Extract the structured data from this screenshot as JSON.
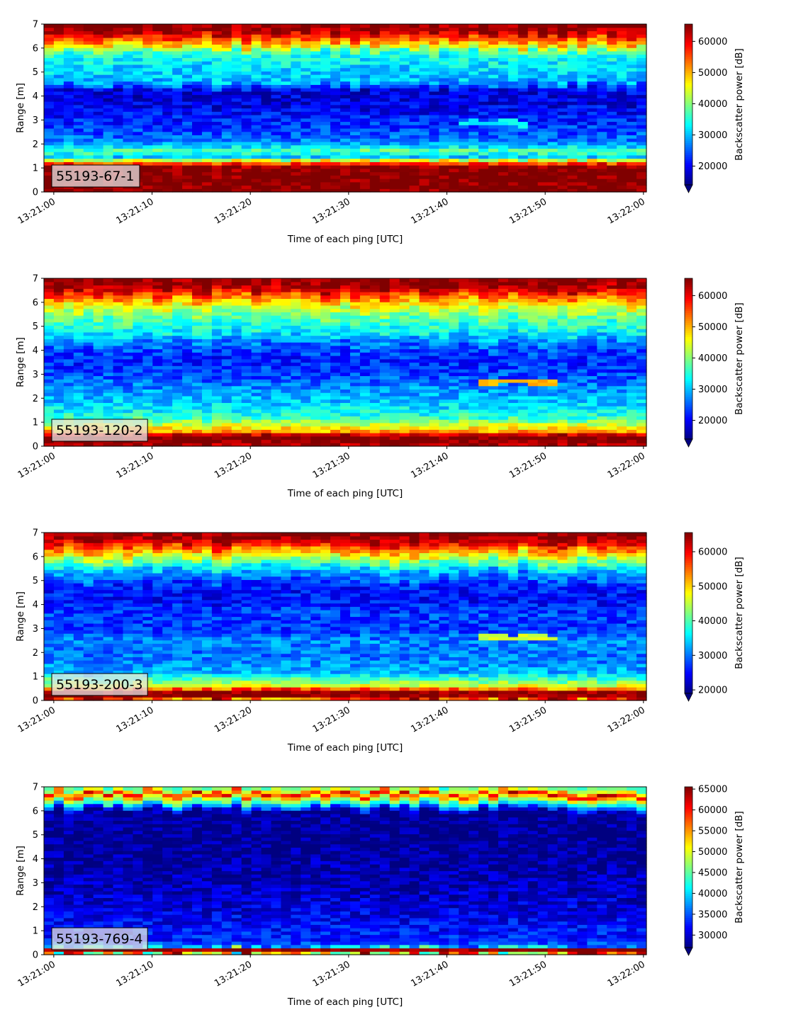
{
  "chart_data": [
    {
      "type": "heatmap",
      "label": "55193-67-1",
      "xlabel": "Time of each ping [UTC]",
      "ylabel": "Range [m]",
      "x_ticks": [
        "13:21:00",
        "13:21:10",
        "13:21:20",
        "13:21:30",
        "13:21:40",
        "13:21:50",
        "13:22:00"
      ],
      "x_range": [
        "13:20:59",
        "13:22:00.3"
      ],
      "ylim": [
        0,
        7
      ],
      "y_ticks": [
        "0",
        "1",
        "2",
        "3",
        "4",
        "5",
        "6",
        "7"
      ],
      "colorbar": {
        "label": "Backscatter power [dB]",
        "min": 14000,
        "max": 65535,
        "ticks": [
          "20000",
          "30000",
          "40000",
          "50000",
          "60000"
        ],
        "tick_values": [
          20000,
          30000,
          40000,
          50000,
          60000
        ],
        "extend": "min",
        "cmap": "jet"
      },
      "profile": [
        [
          0,
          65535
        ],
        [
          0.15,
          65535
        ],
        [
          1.05,
          65535
        ],
        [
          1.25,
          52000
        ],
        [
          1.45,
          30000
        ],
        [
          1.7,
          38000
        ],
        [
          1.9,
          32000
        ],
        [
          2.1,
          27000
        ],
        [
          2.5,
          24000
        ],
        [
          3.0,
          22000
        ],
        [
          3.6,
          19000
        ],
        [
          4.2,
          18500
        ],
        [
          4.6,
          30000
        ],
        [
          5.3,
          32000
        ],
        [
          5.8,
          36000
        ],
        [
          6.1,
          48000
        ],
        [
          6.45,
          57000
        ],
        [
          6.7,
          64000
        ],
        [
          7,
          65535
        ]
      ],
      "features": [
        {
          "t0": 41,
          "t1": 48,
          "y0": 2.75,
          "y1": 3.0,
          "value": 33000
        }
      ]
    },
    {
      "type": "heatmap",
      "label": "55193-120-2",
      "xlabel": "Time of each ping [UTC]",
      "ylabel": "Range [m]",
      "x_ticks": [
        "13:21:00",
        "13:21:10",
        "13:21:20",
        "13:21:30",
        "13:21:40",
        "13:21:50",
        "13:22:00"
      ],
      "x_range": [
        "13:20:59",
        "13:22:00.3"
      ],
      "ylim": [
        0,
        7
      ],
      "y_ticks": [
        "0",
        "1",
        "2",
        "3",
        "4",
        "5",
        "6",
        "7"
      ],
      "colorbar": {
        "label": "Backscatter power [dB]",
        "min": 14000,
        "max": 65535,
        "ticks": [
          "20000",
          "30000",
          "40000",
          "50000",
          "60000"
        ],
        "tick_values": [
          20000,
          30000,
          40000,
          50000,
          60000
        ],
        "extend": "min",
        "cmap": "jet"
      },
      "profile": [
        [
          0,
          62000
        ],
        [
          0.15,
          65535
        ],
        [
          0.45,
          65535
        ],
        [
          0.6,
          52000
        ],
        [
          0.9,
          44000
        ],
        [
          1.2,
          36000
        ],
        [
          1.5,
          33000
        ],
        [
          2.0,
          30000
        ],
        [
          2.5,
          27000
        ],
        [
          3.0,
          24000
        ],
        [
          3.6,
          22000
        ],
        [
          4.2,
          25000
        ],
        [
          4.8,
          33000
        ],
        [
          5.4,
          38000
        ],
        [
          5.9,
          46000
        ],
        [
          6.3,
          55000
        ],
        [
          6.6,
          63000
        ],
        [
          7,
          65535
        ]
      ],
      "features": [
        {
          "t0": 43,
          "t1": 51,
          "y0": 2.6,
          "y1": 2.8,
          "value": 50000
        }
      ]
    },
    {
      "type": "heatmap",
      "label": "55193-200-3",
      "xlabel": "Time of each ping [UTC]",
      "ylabel": "Range [m]",
      "x_ticks": [
        "13:21:00",
        "13:21:10",
        "13:21:20",
        "13:21:30",
        "13:21:40",
        "13:21:50",
        "13:22:00"
      ],
      "x_range": [
        "13:20:59",
        "13:22:00.3"
      ],
      "ylim": [
        0,
        7
      ],
      "y_ticks": [
        "0",
        "1",
        "2",
        "3",
        "4",
        "5",
        "6",
        "7"
      ],
      "colorbar": {
        "label": "Backscatter power [dB]",
        "min": 19000,
        "max": 65535,
        "ticks": [
          "20000",
          "30000",
          "40000",
          "50000",
          "60000"
        ],
        "tick_values": [
          20000,
          30000,
          40000,
          50000,
          60000
        ],
        "extend": "min",
        "cmap": "jet"
      },
      "profile": [
        [
          0,
          40000
        ],
        [
          0.1,
          65535
        ],
        [
          0.4,
          65535
        ],
        [
          0.55,
          48000
        ],
        [
          0.9,
          40000
        ],
        [
          1.2,
          33000
        ],
        [
          1.6,
          31000
        ],
        [
          2.0,
          30000
        ],
        [
          2.5,
          31000
        ],
        [
          3.0,
          27000
        ],
        [
          3.6,
          28000
        ],
        [
          4.2,
          25000
        ],
        [
          4.8,
          26000
        ],
        [
          5.4,
          33000
        ],
        [
          5.9,
          44000
        ],
        [
          6.3,
          54000
        ],
        [
          6.6,
          62000
        ],
        [
          7,
          65535
        ]
      ],
      "features": [
        {
          "t0": 43,
          "t1": 51,
          "y0": 2.55,
          "y1": 2.75,
          "value": 46000
        }
      ]
    },
    {
      "type": "heatmap",
      "label": "55193-769-4",
      "xlabel": "Time of each ping [UTC]",
      "ylabel": "Range [m]",
      "x_ticks": [
        "13:21:00",
        "13:21:10",
        "13:21:20",
        "13:21:30",
        "13:21:40",
        "13:21:50",
        "13:22:00"
      ],
      "x_range": [
        "13:20:59",
        "13:22:00.3"
      ],
      "ylim": [
        0,
        7
      ],
      "y_ticks": [
        "0",
        "1",
        "2",
        "3",
        "4",
        "5",
        "6",
        "7"
      ],
      "colorbar": {
        "label": "Backscatter power [dB]",
        "min": 27000,
        "max": 65535,
        "ticks": [
          "30000",
          "35000",
          "40000",
          "45000",
          "50000",
          "55000",
          "60000",
          "65000"
        ],
        "tick_values": [
          30000,
          35000,
          40000,
          45000,
          50000,
          55000,
          60000,
          65000
        ],
        "extend": "min",
        "cmap": "jet"
      },
      "profile": [
        [
          0,
          27000
        ],
        [
          0.1,
          65535
        ],
        [
          0.25,
          65535
        ],
        [
          0.35,
          36000
        ],
        [
          0.6,
          33000
        ],
        [
          1.2,
          32000
        ],
        [
          2.0,
          30500
        ],
        [
          3.0,
          29000
        ],
        [
          4.0,
          28000
        ],
        [
          5.0,
          27500
        ],
        [
          6.0,
          28000
        ],
        [
          6.2,
          38000
        ],
        [
          6.5,
          50000
        ],
        [
          6.7,
          62000
        ],
        [
          6.85,
          48000
        ],
        [
          7,
          45000
        ]
      ],
      "features": []
    }
  ]
}
